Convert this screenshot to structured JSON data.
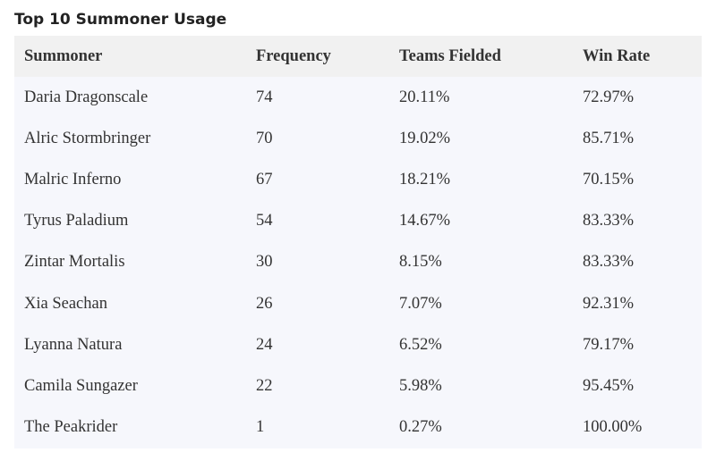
{
  "title": "Top 10 Summoner Usage",
  "table": {
    "columns": [
      "Summoner",
      "Frequency",
      "Teams Fielded",
      "Win Rate"
    ],
    "rows": [
      [
        "Daria Dragonscale",
        "74",
        "20.11%",
        "72.97%"
      ],
      [
        "Alric Stormbringer",
        "70",
        "19.02%",
        "85.71%"
      ],
      [
        "Malric Inferno",
        "67",
        "18.21%",
        "70.15%"
      ],
      [
        "Tyrus Paladium",
        "54",
        "14.67%",
        "83.33%"
      ],
      [
        "Zintar Mortalis",
        "30",
        "8.15%",
        "83.33%"
      ],
      [
        "Xia Seachan",
        "26",
        "7.07%",
        "92.31%"
      ],
      [
        "Lyanna Natura",
        "24",
        "6.52%",
        "79.17%"
      ],
      [
        "Camila Sungazer",
        "22",
        "5.98%",
        "95.45%"
      ],
      [
        "The Peakrider",
        "1",
        "0.27%",
        "100.00%"
      ]
    ]
  }
}
